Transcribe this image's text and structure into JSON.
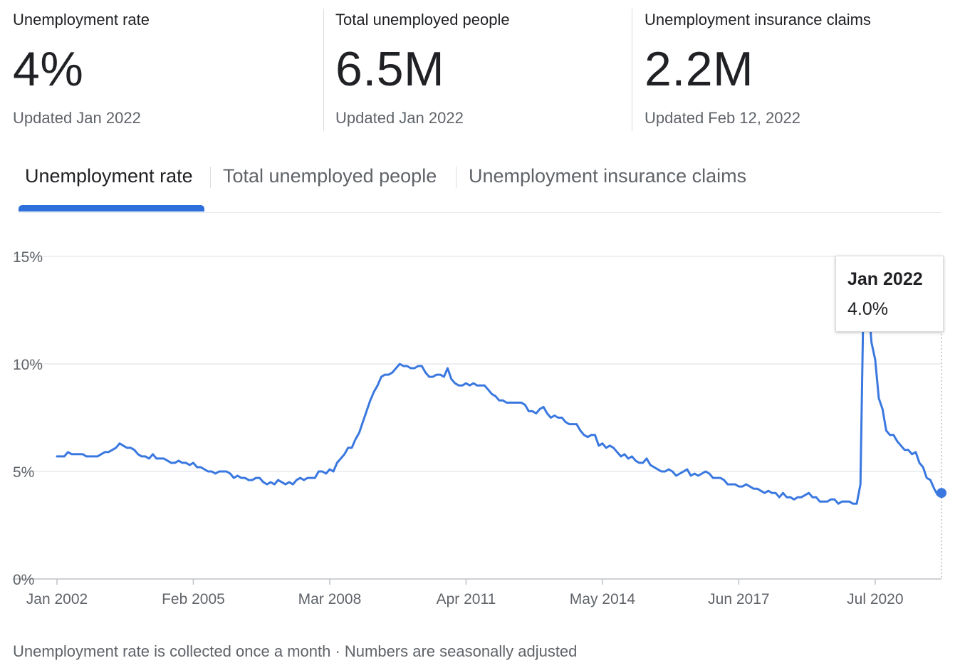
{
  "stats": [
    {
      "label": "Unemployment rate",
      "value": "4%",
      "updated": "Updated Jan 2022"
    },
    {
      "label": "Total unemployed people",
      "value": "6.5M",
      "updated": "Updated Jan 2022"
    },
    {
      "label": "Unemployment insurance claims",
      "value": "2.2M",
      "updated": "Updated Feb 12, 2022"
    }
  ],
  "tabs": [
    {
      "label": "Unemployment rate",
      "active": true
    },
    {
      "label": "Total unemployed people",
      "active": false
    },
    {
      "label": "Unemployment insurance claims",
      "active": false
    }
  ],
  "tooltip": {
    "date": "Jan 2022",
    "value": "4.0%"
  },
  "footnote": "Unemployment rate is collected once a month · Numbers are seasonally adjusted",
  "colors": {
    "line": "#3a78e0",
    "accent": "#2f6fdb",
    "grid": "#e8eaed",
    "axis": "#5f6368"
  },
  "chart_data": {
    "type": "line",
    "title": "",
    "xlabel": "",
    "ylabel": "",
    "y_ticks": [
      "0%",
      "5%",
      "10%",
      "15%"
    ],
    "ylim": [
      0,
      15
    ],
    "x_ticks": [
      "Jan 2002",
      "Feb 2005",
      "Mar 2008",
      "Apr 2011",
      "May 2014",
      "Jun 2017",
      "Jul 2020"
    ],
    "xlim": [
      "2002-01",
      "2022-01"
    ],
    "grid": true,
    "highlight": {
      "x": "2022-01",
      "y": 4.0
    },
    "series": [
      {
        "points": [
          [
            "2002-01",
            5.7
          ],
          [
            "2002-02",
            5.7
          ],
          [
            "2002-03",
            5.7
          ],
          [
            "2002-04",
            5.9
          ],
          [
            "2002-05",
            5.8
          ],
          [
            "2002-06",
            5.8
          ],
          [
            "2002-07",
            5.8
          ],
          [
            "2002-08",
            5.8
          ],
          [
            "2002-09",
            5.7
          ],
          [
            "2002-10",
            5.7
          ],
          [
            "2002-11",
            5.7
          ],
          [
            "2002-12",
            5.7
          ],
          [
            "2003-01",
            5.8
          ],
          [
            "2003-02",
            5.9
          ],
          [
            "2003-03",
            5.9
          ],
          [
            "2003-04",
            6.0
          ],
          [
            "2003-05",
            6.1
          ],
          [
            "2003-06",
            6.3
          ],
          [
            "2003-07",
            6.2
          ],
          [
            "2003-08",
            6.1
          ],
          [
            "2003-09",
            6.1
          ],
          [
            "2003-10",
            6.0
          ],
          [
            "2003-11",
            5.8
          ],
          [
            "2003-12",
            5.7
          ],
          [
            "2004-01",
            5.7
          ],
          [
            "2004-02",
            5.6
          ],
          [
            "2004-03",
            5.8
          ],
          [
            "2004-04",
            5.6
          ],
          [
            "2004-05",
            5.6
          ],
          [
            "2004-06",
            5.6
          ],
          [
            "2004-07",
            5.5
          ],
          [
            "2004-08",
            5.4
          ],
          [
            "2004-09",
            5.4
          ],
          [
            "2004-10",
            5.5
          ],
          [
            "2004-11",
            5.4
          ],
          [
            "2004-12",
            5.4
          ],
          [
            "2005-01",
            5.3
          ],
          [
            "2005-02",
            5.4
          ],
          [
            "2005-03",
            5.2
          ],
          [
            "2005-04",
            5.2
          ],
          [
            "2005-05",
            5.1
          ],
          [
            "2005-06",
            5.0
          ],
          [
            "2005-07",
            5.0
          ],
          [
            "2005-08",
            4.9
          ],
          [
            "2005-09",
            5.0
          ],
          [
            "2005-10",
            5.0
          ],
          [
            "2005-11",
            5.0
          ],
          [
            "2005-12",
            4.9
          ],
          [
            "2006-01",
            4.7
          ],
          [
            "2006-02",
            4.8
          ],
          [
            "2006-03",
            4.7
          ],
          [
            "2006-04",
            4.7
          ],
          [
            "2006-05",
            4.6
          ],
          [
            "2006-06",
            4.6
          ],
          [
            "2006-07",
            4.7
          ],
          [
            "2006-08",
            4.7
          ],
          [
            "2006-09",
            4.5
          ],
          [
            "2006-10",
            4.4
          ],
          [
            "2006-11",
            4.5
          ],
          [
            "2006-12",
            4.4
          ],
          [
            "2007-01",
            4.6
          ],
          [
            "2007-02",
            4.5
          ],
          [
            "2007-03",
            4.4
          ],
          [
            "2007-04",
            4.5
          ],
          [
            "2007-05",
            4.4
          ],
          [
            "2007-06",
            4.6
          ],
          [
            "2007-07",
            4.7
          ],
          [
            "2007-08",
            4.6
          ],
          [
            "2007-09",
            4.7
          ],
          [
            "2007-10",
            4.7
          ],
          [
            "2007-11",
            4.7
          ],
          [
            "2007-12",
            5.0
          ],
          [
            "2008-01",
            5.0
          ],
          [
            "2008-02",
            4.9
          ],
          [
            "2008-03",
            5.1
          ],
          [
            "2008-04",
            5.0
          ],
          [
            "2008-05",
            5.4
          ],
          [
            "2008-06",
            5.6
          ],
          [
            "2008-07",
            5.8
          ],
          [
            "2008-08",
            6.1
          ],
          [
            "2008-09",
            6.1
          ],
          [
            "2008-10",
            6.5
          ],
          [
            "2008-11",
            6.8
          ],
          [
            "2008-12",
            7.3
          ],
          [
            "2009-01",
            7.8
          ],
          [
            "2009-02",
            8.3
          ],
          [
            "2009-03",
            8.7
          ],
          [
            "2009-04",
            9.0
          ],
          [
            "2009-05",
            9.4
          ],
          [
            "2009-06",
            9.5
          ],
          [
            "2009-07",
            9.5
          ],
          [
            "2009-08",
            9.6
          ],
          [
            "2009-09",
            9.8
          ],
          [
            "2009-10",
            10.0
          ],
          [
            "2009-11",
            9.9
          ],
          [
            "2009-12",
            9.9
          ],
          [
            "2010-01",
            9.8
          ],
          [
            "2010-02",
            9.8
          ],
          [
            "2010-03",
            9.9
          ],
          [
            "2010-04",
            9.9
          ],
          [
            "2010-05",
            9.6
          ],
          [
            "2010-06",
            9.4
          ],
          [
            "2010-07",
            9.4
          ],
          [
            "2010-08",
            9.5
          ],
          [
            "2010-09",
            9.5
          ],
          [
            "2010-10",
            9.4
          ],
          [
            "2010-11",
            9.8
          ],
          [
            "2010-12",
            9.3
          ],
          [
            "2011-01",
            9.1
          ],
          [
            "2011-02",
            9.0
          ],
          [
            "2011-03",
            9.0
          ],
          [
            "2011-04",
            9.1
          ],
          [
            "2011-05",
            9.0
          ],
          [
            "2011-06",
            9.1
          ],
          [
            "2011-07",
            9.0
          ],
          [
            "2011-08",
            9.0
          ],
          [
            "2011-09",
            9.0
          ],
          [
            "2011-10",
            8.8
          ],
          [
            "2011-11",
            8.6
          ],
          [
            "2011-12",
            8.5
          ],
          [
            "2012-01",
            8.3
          ],
          [
            "2012-02",
            8.3
          ],
          [
            "2012-03",
            8.2
          ],
          [
            "2012-04",
            8.2
          ],
          [
            "2012-05",
            8.2
          ],
          [
            "2012-06",
            8.2
          ],
          [
            "2012-07",
            8.2
          ],
          [
            "2012-08",
            8.1
          ],
          [
            "2012-09",
            7.8
          ],
          [
            "2012-10",
            7.8
          ],
          [
            "2012-11",
            7.7
          ],
          [
            "2012-12",
            7.9
          ],
          [
            "2013-01",
            8.0
          ],
          [
            "2013-02",
            7.7
          ],
          [
            "2013-03",
            7.5
          ],
          [
            "2013-04",
            7.6
          ],
          [
            "2013-05",
            7.5
          ],
          [
            "2013-06",
            7.5
          ],
          [
            "2013-07",
            7.3
          ],
          [
            "2013-08",
            7.2
          ],
          [
            "2013-09",
            7.2
          ],
          [
            "2013-10",
            7.2
          ],
          [
            "2013-11",
            6.9
          ],
          [
            "2013-12",
            6.7
          ],
          [
            "2014-01",
            6.6
          ],
          [
            "2014-02",
            6.7
          ],
          [
            "2014-03",
            6.7
          ],
          [
            "2014-04",
            6.2
          ],
          [
            "2014-05",
            6.3
          ],
          [
            "2014-06",
            6.1
          ],
          [
            "2014-07",
            6.2
          ],
          [
            "2014-08",
            6.1
          ],
          [
            "2014-09",
            5.9
          ],
          [
            "2014-10",
            5.7
          ],
          [
            "2014-11",
            5.8
          ],
          [
            "2014-12",
            5.6
          ],
          [
            "2015-01",
            5.7
          ],
          [
            "2015-02",
            5.5
          ],
          [
            "2015-03",
            5.4
          ],
          [
            "2015-04",
            5.4
          ],
          [
            "2015-05",
            5.6
          ],
          [
            "2015-06",
            5.3
          ],
          [
            "2015-07",
            5.2
          ],
          [
            "2015-08",
            5.1
          ],
          [
            "2015-09",
            5.0
          ],
          [
            "2015-10",
            5.0
          ],
          [
            "2015-11",
            5.1
          ],
          [
            "2015-12",
            5.0
          ],
          [
            "2016-01",
            4.8
          ],
          [
            "2016-02",
            4.9
          ],
          [
            "2016-03",
            5.0
          ],
          [
            "2016-04",
            5.1
          ],
          [
            "2016-05",
            4.8
          ],
          [
            "2016-06",
            4.9
          ],
          [
            "2016-07",
            4.8
          ],
          [
            "2016-08",
            4.9
          ],
          [
            "2016-09",
            5.0
          ],
          [
            "2016-10",
            4.9
          ],
          [
            "2016-11",
            4.7
          ],
          [
            "2016-12",
            4.7
          ],
          [
            "2017-01",
            4.7
          ],
          [
            "2017-02",
            4.6
          ],
          [
            "2017-03",
            4.4
          ],
          [
            "2017-04",
            4.4
          ],
          [
            "2017-05",
            4.4
          ],
          [
            "2017-06",
            4.3
          ],
          [
            "2017-07",
            4.3
          ],
          [
            "2017-08",
            4.4
          ],
          [
            "2017-09",
            4.3
          ],
          [
            "2017-10",
            4.2
          ],
          [
            "2017-11",
            4.2
          ],
          [
            "2017-12",
            4.1
          ],
          [
            "2018-01",
            4.0
          ],
          [
            "2018-02",
            4.1
          ],
          [
            "2018-03",
            4.0
          ],
          [
            "2018-04",
            4.0
          ],
          [
            "2018-05",
            3.8
          ],
          [
            "2018-06",
            4.0
          ],
          [
            "2018-07",
            3.8
          ],
          [
            "2018-08",
            3.8
          ],
          [
            "2018-09",
            3.7
          ],
          [
            "2018-10",
            3.8
          ],
          [
            "2018-11",
            3.8
          ],
          [
            "2018-12",
            3.9
          ],
          [
            "2019-01",
            4.0
          ],
          [
            "2019-02",
            3.8
          ],
          [
            "2019-03",
            3.8
          ],
          [
            "2019-04",
            3.6
          ],
          [
            "2019-05",
            3.6
          ],
          [
            "2019-06",
            3.6
          ],
          [
            "2019-07",
            3.7
          ],
          [
            "2019-08",
            3.7
          ],
          [
            "2019-09",
            3.5
          ],
          [
            "2019-10",
            3.6
          ],
          [
            "2019-11",
            3.6
          ],
          [
            "2019-12",
            3.6
          ],
          [
            "2020-01",
            3.5
          ],
          [
            "2020-02",
            3.5
          ],
          [
            "2020-03",
            4.4
          ],
          [
            "2020-04",
            14.7
          ],
          [
            "2020-05",
            13.2
          ],
          [
            "2020-06",
            11.0
          ],
          [
            "2020-07",
            10.2
          ],
          [
            "2020-08",
            8.4
          ],
          [
            "2020-09",
            7.9
          ],
          [
            "2020-10",
            6.9
          ],
          [
            "2020-11",
            6.7
          ],
          [
            "2020-12",
            6.7
          ],
          [
            "2021-01",
            6.4
          ],
          [
            "2021-02",
            6.2
          ],
          [
            "2021-03",
            6.0
          ],
          [
            "2021-04",
            6.0
          ],
          [
            "2021-05",
            5.8
          ],
          [
            "2021-06",
            5.9
          ],
          [
            "2021-07",
            5.4
          ],
          [
            "2021-08",
            5.2
          ],
          [
            "2021-09",
            4.7
          ],
          [
            "2021-10",
            4.6
          ],
          [
            "2021-11",
            4.2
          ],
          [
            "2021-12",
            3.9
          ],
          [
            "2022-01",
            4.0
          ]
        ]
      }
    ]
  }
}
